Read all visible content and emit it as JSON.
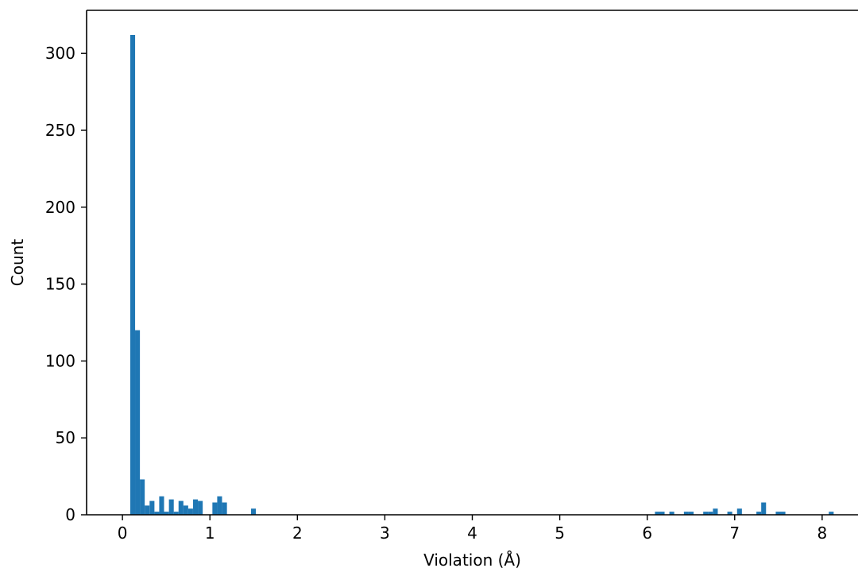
{
  "chart_data": {
    "type": "bar",
    "title": "",
    "xlabel": "Violation (Å)",
    "ylabel": "Count",
    "xlim": [
      -0.41,
      8.41
    ],
    "ylim": [
      0,
      328
    ],
    "grid": false,
    "bar_color": "#1f77b4",
    "bin_width": 0.0553,
    "x_ticks": [
      0,
      1,
      2,
      3,
      4,
      5,
      6,
      7,
      8
    ],
    "x_tick_labels": [
      "0",
      "1",
      "2",
      "3",
      "4",
      "5",
      "6",
      "7",
      "8"
    ],
    "y_ticks": [
      0,
      50,
      100,
      150,
      200,
      250,
      300
    ],
    "y_tick_labels": [
      "0",
      "50",
      "100",
      "150",
      "200",
      "250",
      "300"
    ],
    "bins": [
      {
        "x": 0.117,
        "count": 312
      },
      {
        "x": 0.172,
        "count": 120
      },
      {
        "x": 0.227,
        "count": 23
      },
      {
        "x": 0.282,
        "count": 6
      },
      {
        "x": 0.338,
        "count": 9
      },
      {
        "x": 0.393,
        "count": 2
      },
      {
        "x": 0.448,
        "count": 12
      },
      {
        "x": 0.503,
        "count": 2
      },
      {
        "x": 0.559,
        "count": 10
      },
      {
        "x": 0.614,
        "count": 2
      },
      {
        "x": 0.669,
        "count": 9
      },
      {
        "x": 0.724,
        "count": 6
      },
      {
        "x": 0.779,
        "count": 4
      },
      {
        "x": 0.835,
        "count": 10
      },
      {
        "x": 0.89,
        "count": 9
      },
      {
        "x": 1.056,
        "count": 8
      },
      {
        "x": 1.111,
        "count": 12
      },
      {
        "x": 1.167,
        "count": 8
      },
      {
        "x": 1.498,
        "count": 4
      },
      {
        "x": 6.116,
        "count": 2
      },
      {
        "x": 6.171,
        "count": 2
      },
      {
        "x": 6.281,
        "count": 2
      },
      {
        "x": 6.447,
        "count": 2
      },
      {
        "x": 6.503,
        "count": 2
      },
      {
        "x": 6.668,
        "count": 2
      },
      {
        "x": 6.723,
        "count": 2
      },
      {
        "x": 6.779,
        "count": 4
      },
      {
        "x": 6.944,
        "count": 2
      },
      {
        "x": 7.055,
        "count": 4
      },
      {
        "x": 7.276,
        "count": 2
      },
      {
        "x": 7.331,
        "count": 8
      },
      {
        "x": 7.497,
        "count": 2
      },
      {
        "x": 7.552,
        "count": 2
      },
      {
        "x": 8.104,
        "count": 2
      }
    ]
  }
}
